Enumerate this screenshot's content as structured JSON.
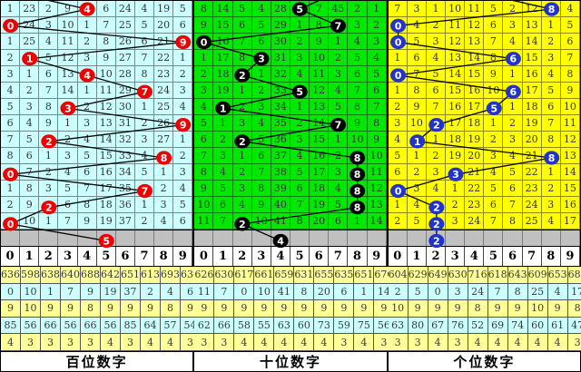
{
  "chart_data": {
    "type": "table",
    "description": "3D lottery digit trend chart with miss counts; three panels for hundreds, tens and units digits; drawn digit per row shown as colored ball connected by zigzag line; gray row is latest pending draw; bottom shows digit header and five statistic rows",
    "colors": {
      "pending_row_bg": "#C0C0C0",
      "stats_row_yellow": "#FFFF99",
      "stats_row_cyan": "#CCFFFF"
    },
    "panels": [
      {
        "label": "百位数字",
        "colors": {
          "cell_bg": "#CCFFFF",
          "ball": "#EE0000"
        },
        "header": [
          "0",
          "1",
          "2",
          "3",
          "4",
          "5",
          "6",
          "7",
          "8",
          "9"
        ],
        "hits": [
          4,
          0,
          9,
          1,
          4,
          7,
          3,
          9,
          2,
          8,
          0,
          7,
          2,
          0
        ],
        "pending": 5,
        "incoming_from_col": 0,
        "rows": [
          [
            "1",
            "23",
            "2",
            "9",
            "4",
            "6",
            "24",
            "4",
            "19",
            "5"
          ],
          [
            "0",
            "24",
            "3",
            "10",
            "1",
            "7",
            "25",
            "5",
            "20",
            "6"
          ],
          [
            "1",
            "25",
            "4",
            "11",
            "2",
            "8",
            "26",
            "6",
            "21",
            "9"
          ],
          [
            "2",
            "1",
            "5",
            "12",
            "3",
            "9",
            "27",
            "7",
            "22",
            "1"
          ],
          [
            "3",
            "1",
            "6",
            "13",
            "4",
            "10",
            "28",
            "8",
            "23",
            "2"
          ],
          [
            "4",
            "2",
            "7",
            "14",
            "1",
            "11",
            "29",
            "7",
            "24",
            "3"
          ],
          [
            "5",
            "3",
            "8",
            "3",
            "2",
            "12",
            "30",
            "1",
            "25",
            "4"
          ],
          [
            "6",
            "4",
            "9",
            "1",
            "3",
            "13",
            "31",
            "2",
            "26",
            "9"
          ],
          [
            "7",
            "5",
            "2",
            "2",
            "4",
            "14",
            "32",
            "3",
            "27",
            "1"
          ],
          [
            "8",
            "6",
            "1",
            "3",
            "5",
            "15",
            "33",
            "4",
            "8",
            "2"
          ],
          [
            "0",
            "7",
            "2",
            "4",
            "6",
            "16",
            "34",
            "5",
            "1",
            "3"
          ],
          [
            "1",
            "8",
            "3",
            "5",
            "7",
            "17",
            "35",
            "7",
            "2",
            "4"
          ],
          [
            "2",
            "9",
            "2",
            "6",
            "8",
            "18",
            "36",
            "1",
            "3",
            "5"
          ],
          [
            "0",
            "10",
            "1",
            "7",
            "9",
            "19",
            "37",
            "2",
            "4",
            "6"
          ]
        ],
        "stats": [
          [
            "636",
            "598",
            "638",
            "640",
            "688",
            "642",
            "651",
            "613",
            "693",
            "636"
          ],
          [
            "0",
            "10",
            "1",
            "7",
            "9",
            "19",
            "37",
            "2",
            "4",
            "6"
          ],
          [
            "9",
            "10",
            "9",
            "9",
            "8",
            "9",
            "9",
            "9",
            "8",
            "9"
          ],
          [
            "85",
            "56",
            "66",
            "56",
            "66",
            "56",
            "85",
            "64",
            "57",
            "54"
          ],
          [
            "4",
            "3",
            "3",
            "3",
            "3",
            "4",
            "3",
            "4",
            "4",
            "3"
          ]
        ]
      },
      {
        "label": "十位数字",
        "colors": {
          "cell_bg": "#00E800",
          "ball": "#000000"
        },
        "header": [
          "0",
          "1",
          "2",
          "3",
          "4",
          "5",
          "6",
          "7",
          "8",
          "9"
        ],
        "hits": [
          5,
          7,
          0,
          3,
          2,
          5,
          1,
          7,
          2,
          8,
          8,
          8,
          8,
          2
        ],
        "pending": 4,
        "incoming_from_col": 7,
        "rows": [
          [
            "8",
            "14",
            "5",
            "4",
            "28",
            "5",
            "7",
            "45",
            "2",
            "1"
          ],
          [
            "9",
            "15",
            "6",
            "5",
            "29",
            "1",
            "8",
            "7",
            "3",
            "2"
          ],
          [
            "0",
            "16",
            "7",
            "6",
            "30",
            "2",
            "9",
            "1",
            "4",
            "3"
          ],
          [
            "1",
            "17",
            "8",
            "3",
            "31",
            "3",
            "10",
            "2",
            "5",
            "4"
          ],
          [
            "2",
            "18",
            "2",
            "1",
            "32",
            "4",
            "11",
            "3",
            "6",
            "5"
          ],
          [
            "3",
            "19",
            "1",
            "2",
            "33",
            "5",
            "12",
            "4",
            "7",
            "6"
          ],
          [
            "4",
            "1",
            "2",
            "3",
            "34",
            "1",
            "13",
            "5",
            "8",
            "7"
          ],
          [
            "5",
            "1",
            "3",
            "4",
            "35",
            "2",
            "14",
            "7",
            "9",
            "8"
          ],
          [
            "6",
            "2",
            "2",
            "5",
            "36",
            "3",
            "15",
            "1",
            "10",
            "9"
          ],
          [
            "7",
            "3",
            "1",
            "6",
            "37",
            "4",
            "16",
            "2",
            "8",
            "10"
          ],
          [
            "8",
            "4",
            "2",
            "7",
            "38",
            "5",
            "17",
            "3",
            "8",
            "11"
          ],
          [
            "9",
            "5",
            "3",
            "8",
            "39",
            "6",
            "18",
            "4",
            "8",
            "12"
          ],
          [
            "10",
            "6",
            "4",
            "9",
            "40",
            "7",
            "19",
            "5",
            "8",
            "13"
          ],
          [
            "11",
            "7",
            "2",
            "10",
            "41",
            "8",
            "20",
            "6",
            "1",
            "14"
          ]
        ],
        "stats": [
          [
            "626",
            "630",
            "617",
            "661",
            "659",
            "631",
            "655",
            "635",
            "651",
            "670"
          ],
          [
            "11",
            "7",
            "0",
            "10",
            "41",
            "8",
            "20",
            "6",
            "1",
            "14"
          ],
          [
            "9",
            "9",
            "9",
            "9",
            "9",
            "9",
            "9",
            "9",
            "9",
            "9"
          ],
          [
            "62",
            "66",
            "58",
            "55",
            "63",
            "60",
            "73",
            "59",
            "75",
            "56"
          ],
          [
            "3",
            "3",
            "4",
            "4",
            "4",
            "4",
            "4",
            "3",
            "4",
            "3"
          ]
        ]
      },
      {
        "label": "个位数字",
        "colors": {
          "cell_bg": "#FFFF00",
          "ball": "#2233CC"
        },
        "header": [
          "0",
          "1",
          "2",
          "3",
          "4",
          "5",
          "6",
          "7",
          "8",
          "9"
        ],
        "hits": [
          8,
          0,
          0,
          6,
          0,
          6,
          5,
          2,
          1,
          8,
          3,
          0,
          2,
          2
        ],
        "pending": 2,
        "incoming_from_col": 4,
        "rows": [
          [
            "7",
            "3",
            "1",
            "10",
            "11",
            "5",
            "2",
            "12",
            "8",
            "4"
          ],
          [
            "0",
            "4",
            "2",
            "11",
            "12",
            "6",
            "3",
            "13",
            "1",
            "5"
          ],
          [
            "0",
            "5",
            "3",
            "12",
            "13",
            "7",
            "4",
            "14",
            "2",
            "6"
          ],
          [
            "1",
            "6",
            "4",
            "13",
            "14",
            "8",
            "6",
            "15",
            "3",
            "7"
          ],
          [
            "0",
            "7",
            "5",
            "14",
            "15",
            "9",
            "1",
            "16",
            "4",
            "8"
          ],
          [
            "1",
            "8",
            "6",
            "15",
            "16",
            "10",
            "6",
            "17",
            "5",
            "9"
          ],
          [
            "2",
            "9",
            "7",
            "16",
            "17",
            "5",
            "1",
            "18",
            "6",
            "10"
          ],
          [
            "3",
            "10",
            "2",
            "17",
            "18",
            "1",
            "2",
            "19",
            "7",
            "11"
          ],
          [
            "4",
            "1",
            "1",
            "18",
            "19",
            "2",
            "3",
            "20",
            "8",
            "12"
          ],
          [
            "5",
            "1",
            "2",
            "19",
            "20",
            "3",
            "4",
            "21",
            "8",
            "13"
          ],
          [
            "6",
            "2",
            "3",
            "3",
            "21",
            "4",
            "5",
            "22",
            "1",
            "14"
          ],
          [
            "0",
            "3",
            "4",
            "1",
            "22",
            "5",
            "6",
            "23",
            "2",
            "15"
          ],
          [
            "1",
            "4",
            "2",
            "2",
            "23",
            "6",
            "7",
            "24",
            "3",
            "16"
          ],
          [
            "2",
            "5",
            "2",
            "3",
            "24",
            "7",
            "8",
            "25",
            "4",
            "17"
          ]
        ],
        "stats": [
          [
            "604",
            "629",
            "649",
            "630",
            "716",
            "618",
            "643",
            "609",
            "653",
            "684"
          ],
          [
            "2",
            "5",
            "0",
            "3",
            "24",
            "7",
            "8",
            "25",
            "4",
            "17"
          ],
          [
            "10",
            "9",
            "9",
            "9",
            "8",
            "9",
            "9",
            "10",
            "9",
            "8"
          ],
          [
            "63",
            "80",
            "67",
            "76",
            "52",
            "69",
            "74",
            "60",
            "61",
            "47"
          ],
          [
            "3",
            "3",
            "4",
            "3",
            "4",
            "4",
            "4",
            "4",
            "4",
            "3"
          ]
        ]
      }
    ]
  }
}
